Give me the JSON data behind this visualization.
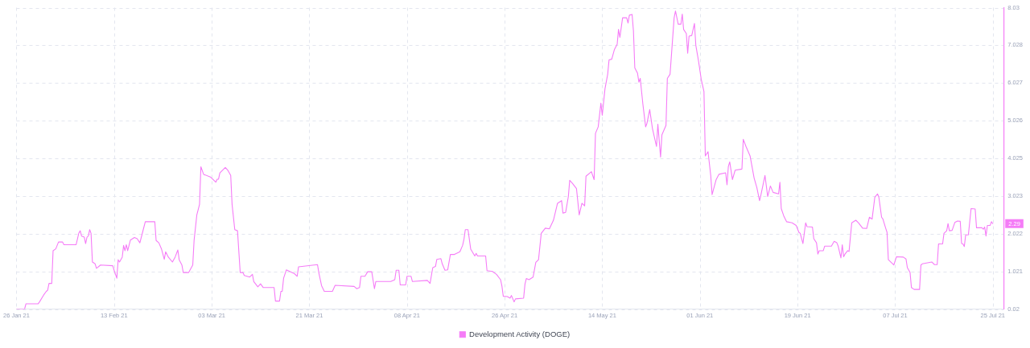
{
  "chart_data": {
    "type": "line",
    "x": [
      "2021-01-26T00:00",
      "2021-01-27T12:00",
      "2021-01-27T18:00",
      "2021-01-30T00:00",
      "2021-01-30T06:00",
      "2021-01-31T00:00",
      "2021-01-31T12:00",
      "2021-01-31T18:00",
      "2021-02-01T00:00",
      "2021-02-01T12:00",
      "2021-02-01T18:00",
      "2021-02-02T06:00",
      "2021-02-02T18:00",
      "2021-02-03T12:00",
      "2021-02-03T18:00",
      "2021-02-06T00:00",
      "2021-02-06T12:00",
      "2021-02-06T18:00",
      "2021-02-07T00:00",
      "2021-02-07T12:00",
      "2021-02-07T18:00",
      "2021-02-08T00:00",
      "2021-02-08T06:00",
      "2021-02-08T12:00",
      "2021-02-08T18:00",
      "2021-02-09T00:00",
      "2021-02-09T12:00",
      "2021-02-09T18:00",
      "2021-02-10T12:00",
      "2021-02-12T18:00",
      "2021-02-13T00:00",
      "2021-02-13T12:00",
      "2021-02-13T18:00",
      "2021-02-14T00:00",
      "2021-02-14T12:00",
      "2021-02-14T18:00",
      "2021-02-15T00:00",
      "2021-02-15T06:00",
      "2021-02-15T12:00",
      "2021-02-16T00:00",
      "2021-02-16T18:00",
      "2021-02-17T06:00",
      "2021-02-17T18:00",
      "2021-02-18T06:00",
      "2021-02-18T18:00",
      "2021-02-20T12:00",
      "2021-02-20T18:00",
      "2021-02-21T06:00",
      "2021-02-21T18:00",
      "2021-02-22T06:00",
      "2021-02-22T12:00",
      "2021-02-23T00:00",
      "2021-02-23T18:00",
      "2021-02-24T06:00",
      "2021-02-24T18:00",
      "2021-02-25T00:00",
      "2021-02-25T12:00",
      "2021-02-25T18:00",
      "2021-02-26T18:00",
      "2021-02-27T12:00",
      "2021-02-27T18:00",
      "2021-02-28T06:00",
      "2021-02-28T18:00",
      "2021-03-01T00:00",
      "2021-03-01T12:00",
      "2021-03-02T18:00",
      "2021-03-03T18:00",
      "2021-03-04T00:00",
      "2021-03-04T06:00",
      "2021-03-04T12:00",
      "2021-03-05T12:00",
      "2021-03-06T00:00",
      "2021-03-06T12:00",
      "2021-03-06T18:00",
      "2021-03-07T06:00",
      "2021-03-07T18:00",
      "2021-03-08T06:00",
      "2021-03-08T18:00",
      "2021-03-09T00:00",
      "2021-03-10T00:00",
      "2021-03-10T12:00",
      "2021-03-10T18:00",
      "2021-03-11T12:00",
      "2021-03-12T00:00",
      "2021-03-12T12:00",
      "2021-03-14T12:00",
      "2021-03-14T18:00",
      "2021-03-15T12:00",
      "2021-03-15T18:00",
      "2021-03-16T00:00",
      "2021-03-16T06:00",
      "2021-03-16T18:00",
      "2021-03-18T06:00",
      "2021-03-18T18:00",
      "2021-03-19T00:00",
      "2021-03-22T12:00",
      "2021-03-22T18:00",
      "2021-03-23T06:00",
      "2021-03-23T18:00",
      "2021-03-25T06:00",
      "2021-03-25T18:00",
      "2021-03-29T06:00",
      "2021-03-29T18:00",
      "2021-03-30T06:00",
      "2021-03-30T12:00",
      "2021-03-31T06:00",
      "2021-03-31T18:00",
      "2021-04-01T12:00",
      "2021-04-02T00:00",
      "2021-04-02T06:00",
      "2021-04-05T00:00",
      "2021-04-05T18:00",
      "2021-04-06T00:00",
      "2021-04-06T12:00",
      "2021-04-06T18:00",
      "2021-04-07T18:00",
      "2021-04-08T00:00",
      "2021-04-08T18:00",
      "2021-04-09T00:00",
      "2021-04-11T18:00",
      "2021-04-12T06:00",
      "2021-04-12T18:00",
      "2021-04-13T06:00",
      "2021-04-13T12:00",
      "2021-04-14T06:00",
      "2021-04-14T12:00",
      "2021-04-15T00:00",
      "2021-04-15T12:00",
      "2021-04-16T00:00",
      "2021-04-16T18:00",
      "2021-04-17T18:00",
      "2021-04-18T06:00",
      "2021-04-18T12:00",
      "2021-04-18T18:00",
      "2021-04-19T06:00",
      "2021-04-19T18:00",
      "2021-04-20T12:00",
      "2021-04-20T18:00",
      "2021-04-21T00:00",
      "2021-04-22T12:00",
      "2021-04-22T18:00",
      "2021-04-23T18:00",
      "2021-04-24T12:00",
      "2021-04-25T06:00",
      "2021-04-25T12:00",
      "2021-04-25T18:00",
      "2021-04-26T12:00",
      "2021-04-27T00:00",
      "2021-04-27T06:00",
      "2021-04-27T18:00",
      "2021-04-28T00:00",
      "2021-04-29T12:00",
      "2021-04-29T18:00",
      "2021-04-30T00:00",
      "2021-04-30T12:00",
      "2021-05-01T06:00",
      "2021-05-01T18:00",
      "2021-05-02T06:00",
      "2021-05-02T18:00",
      "2021-05-03T12:00",
      "2021-05-04T06:00",
      "2021-05-05T00:00",
      "2021-05-05T18:00",
      "2021-05-06T12:00",
      "2021-05-06T18:00",
      "2021-05-07T06:00",
      "2021-05-07T18:00",
      "2021-05-08T00:00",
      "2021-05-08T12:00",
      "2021-05-09T06:00",
      "2021-05-09T18:00",
      "2021-05-10T06:00",
      "2021-05-10T18:00",
      "2021-05-11T00:00",
      "2021-05-12T00:00",
      "2021-05-12T12:00",
      "2021-05-12T18:00",
      "2021-05-13T06:00",
      "2021-05-13T18:00",
      "2021-05-14T00:00",
      "2021-05-14T12:00",
      "2021-05-15T00:00",
      "2021-05-15T06:00",
      "2021-05-15T18:00",
      "2021-05-16T06:00",
      "2021-05-16T18:00",
      "2021-05-17T00:00",
      "2021-05-17T06:00",
      "2021-05-17T18:00",
      "2021-05-18T12:00",
      "2021-05-18T18:00",
      "2021-05-19T00:00",
      "2021-05-19T12:00",
      "2021-05-19T18:00",
      "2021-05-20T00:00",
      "2021-05-20T12:00",
      "2021-05-20T18:00",
      "2021-05-21T00:00",
      "2021-05-21T12:00",
      "2021-05-22T00:00",
      "2021-05-22T06:00",
      "2021-05-22T18:00",
      "2021-05-23T06:00",
      "2021-05-24T00:00",
      "2021-05-24T06:00",
      "2021-05-24T18:00",
      "2021-05-25T00:00",
      "2021-05-25T18:00",
      "2021-05-26T00:00",
      "2021-05-26T12:00",
      "2021-05-27T06:00",
      "2021-05-27T12:00",
      "2021-05-28T00:00",
      "2021-05-28T12:00",
      "2021-05-28T18:00",
      "2021-05-29T00:00",
      "2021-05-29T12:00",
      "2021-05-29T18:00",
      "2021-05-30T00:00",
      "2021-05-30T12:00",
      "2021-05-31T00:00",
      "2021-05-31T06:00",
      "2021-05-31T18:00",
      "2021-06-01T06:00",
      "2021-06-01T18:00",
      "2021-06-02T00:00",
      "2021-06-02T12:00",
      "2021-06-03T00:00",
      "2021-06-03T06:00",
      "2021-06-04T00:00",
      "2021-06-04T12:00",
      "2021-06-05T18:00",
      "2021-06-06T00:00",
      "2021-06-06T06:00",
      "2021-06-06T12:00",
      "2021-06-07T00:00",
      "2021-06-07T12:00",
      "2021-06-08T18:00",
      "2021-06-09T00:00",
      "2021-06-09T12:00",
      "2021-06-10T06:00",
      "2021-06-11T00:00",
      "2021-06-11T12:00",
      "2021-06-12T00:00",
      "2021-06-12T06:00",
      "2021-06-13T00:00",
      "2021-06-13T12:00",
      "2021-06-14T00:00",
      "2021-06-14T12:00",
      "2021-06-15T12:00",
      "2021-06-15T18:00",
      "2021-06-16T00:00",
      "2021-06-16T12:00",
      "2021-06-17T00:00",
      "2021-06-18T00:00",
      "2021-06-18T18:00",
      "2021-06-19T06:00",
      "2021-06-19T12:00",
      "2021-06-20T00:00",
      "2021-06-20T12:00",
      "2021-06-20T18:00",
      "2021-06-21T18:00",
      "2021-06-22T00:00",
      "2021-06-22T12:00",
      "2021-06-22T18:00",
      "2021-06-23T00:00",
      "2021-06-23T18:00",
      "2021-06-24T00:00",
      "2021-06-25T06:00",
      "2021-06-25T18:00",
      "2021-06-26T06:00",
      "2021-06-26T12:00",
      "2021-06-27T00:00",
      "2021-06-27T06:00",
      "2021-06-27T12:00",
      "2021-06-27T18:00",
      "2021-06-28T06:00",
      "2021-06-28T12:00",
      "2021-06-29T00:00",
      "2021-06-29T18:00",
      "2021-06-30T06:00",
      "2021-07-01T00:00",
      "2021-07-01T18:00",
      "2021-07-02T06:00",
      "2021-07-02T18:00",
      "2021-07-03T06:00",
      "2021-07-03T18:00",
      "2021-07-04T00:00",
      "2021-07-04T12:00",
      "2021-07-04T18:00",
      "2021-07-05T06:00",
      "2021-07-05T12:00",
      "2021-07-05T18:00",
      "2021-07-06T06:00",
      "2021-07-06T18:00",
      "2021-07-07T06:00",
      "2021-07-08T12:00",
      "2021-07-09T00:00",
      "2021-07-09T06:00",
      "2021-07-09T18:00",
      "2021-07-10T00:00",
      "2021-07-10T12:00",
      "2021-07-11T12:00",
      "2021-07-11T18:00",
      "2021-07-12T00:00",
      "2021-07-13T18:00",
      "2021-07-14T06:00",
      "2021-07-14T18:00",
      "2021-07-15T00:00",
      "2021-07-15T18:00",
      "2021-07-16T00:00",
      "2021-07-16T12:00",
      "2021-07-16T18:00",
      "2021-07-17T00:00",
      "2021-07-17T12:00",
      "2021-07-18T00:00",
      "2021-07-18T12:00",
      "2021-07-19T00:00",
      "2021-07-19T06:00",
      "2021-07-19T12:00",
      "2021-07-19T18:00",
      "2021-07-20T00:00",
      "2021-07-20T12:00",
      "2021-07-21T00:00",
      "2021-07-21T18:00",
      "2021-07-22T00:00",
      "2021-07-23T00:00",
      "2021-07-23T06:00",
      "2021-07-23T12:00",
      "2021-07-23T18:00",
      "2021-07-24T00:00",
      "2021-07-24T12:00",
      "2021-07-24T18:00",
      "2021-07-25T00:00"
    ],
    "series": [
      {
        "name": "Development Activity (DOGE)",
        "color": "#f57cf7",
        "values": [
          0.02,
          0.02,
          0.16,
          0.16,
          0.21,
          0.39,
          0.49,
          0.52,
          0.7,
          0.7,
          1.57,
          1.62,
          1.8,
          1.8,
          1.73,
          1.73,
          2.04,
          2.1,
          1.96,
          1.93,
          1.76,
          1.93,
          1.96,
          2.13,
          2.03,
          1.27,
          1.22,
          1.1,
          1.19,
          1.17,
          1.05,
          0.84,
          1.33,
          1.27,
          1.4,
          1.71,
          1.57,
          1.73,
          1.57,
          1.85,
          1.92,
          1.89,
          1.78,
          2.06,
          2.34,
          2.34,
          1.84,
          1.78,
          1.61,
          1.34,
          1.54,
          1.4,
          1.27,
          1.4,
          1.59,
          1.33,
          1.19,
          0.99,
          0.99,
          1.19,
          1.85,
          2.52,
          2.8,
          3.8,
          3.6,
          3.53,
          3.39,
          3.47,
          3.47,
          3.64,
          3.78,
          3.7,
          3.57,
          2.8,
          2.13,
          2.1,
          0.99,
          0.99,
          0.91,
          0.87,
          0.94,
          0.75,
          0.61,
          0.69,
          0.59,
          0.59,
          0.23,
          0.23,
          0.49,
          0.49,
          0.84,
          1.06,
          0.96,
          0.89,
          1.14,
          1.2,
          0.98,
          0.64,
          0.49,
          0.49,
          0.65,
          0.62,
          0.56,
          0.59,
          0.89,
          0.89,
          1.01,
          1.01,
          0.56,
          0.75,
          0.75,
          0.8,
          1.05,
          1.05,
          0.66,
          0.66,
          0.89,
          0.89,
          0.75,
          0.78,
          0.7,
          1.12,
          1.15,
          1.34,
          1.36,
          1.22,
          1.05,
          1.06,
          1.47,
          1.47,
          1.54,
          1.71,
          1.87,
          2.13,
          2.13,
          1.61,
          1.43,
          1.5,
          1.43,
          1.43,
          1.04,
          1.02,
          0.94,
          0.8,
          0.63,
          0.36,
          0.35,
          0.31,
          0.38,
          0.21,
          0.29,
          0.31,
          0.68,
          0.83,
          0.8,
          0.87,
          1.26,
          1.33,
          2.03,
          2.17,
          2.15,
          2.38,
          2.83,
          2.9,
          2.57,
          2.59,
          3.01,
          3.44,
          3.36,
          3.22,
          2.52,
          2.83,
          2.76,
          3.55,
          3.67,
          3.46,
          4.69,
          4.86,
          5.49,
          5.17,
          5.87,
          6.26,
          6.64,
          6.66,
          6.92,
          7.06,
          7.45,
          7.24,
          7.76,
          7.76,
          7.62,
          7.83,
          7.85,
          7.41,
          6.43,
          6.29,
          6.05,
          6.15,
          5.45,
          4.86,
          4.96,
          5.32,
          4.82,
          4.34,
          4.93,
          4.06,
          4.65,
          4.9,
          6.15,
          6.26,
          7.76,
          7.94,
          7.59,
          7.59,
          7.86,
          7.45,
          7.34,
          6.82,
          7.27,
          7.29,
          7.61,
          7.03,
          6.61,
          6.12,
          5.8,
          4.09,
          4.2,
          3.57,
          3.06,
          3.46,
          3.6,
          3.64,
          3.32,
          3.81,
          3.93,
          3.46,
          3.71,
          3.74,
          4.53,
          4.34,
          4.09,
          3.5,
          3.25,
          2.9,
          3.05,
          3.57,
          3.01,
          3.29,
          3.12,
          3.08,
          3.39,
          2.69,
          2.48,
          2.34,
          2.31,
          2.24,
          2.06,
          2.03,
          1.76,
          2.31,
          2.21,
          2.2,
          1.89,
          1.78,
          1.48,
          1.57,
          1.57,
          1.69,
          1.69,
          1.82,
          1.78,
          1.69,
          1.38,
          1.73,
          1.41,
          1.48,
          1.57,
          1.55,
          2.31,
          2.38,
          2.31,
          2.17,
          2.16,
          2.46,
          2.41,
          2.99,
          3.08,
          2.99,
          2.46,
          2.41,
          2.17,
          2.06,
          1.33,
          1.26,
          1.19,
          1.41,
          1.4,
          1.35,
          1.12,
          0.99,
          0.59,
          0.54,
          0.54,
          1.19,
          1.22,
          1.27,
          1.2,
          1.2,
          1.75,
          1.75,
          2.03,
          2.1,
          2.29,
          2.1,
          2.11,
          2.32,
          2.36,
          2.35,
          1.76,
          1.75,
          1.68,
          1.99,
          1.99,
          2.69,
          2.68,
          2.18,
          2.18,
          2.14,
          2.2,
          1.96,
          2.24,
          2.24,
          2.34,
          2.29
        ]
      }
    ],
    "xlim": [
      "2021-01-26",
      "2021-07-27"
    ],
    "xticks": [
      {
        "value": "2021-01-26",
        "label": "26 Jan 21"
      },
      {
        "value": "2021-02-13",
        "label": "13 Feb 21"
      },
      {
        "value": "2021-03-03",
        "label": "03 Mar 21"
      },
      {
        "value": "2021-03-21",
        "label": "21 Mar 21"
      },
      {
        "value": "2021-04-08",
        "label": "08 Apr 21"
      },
      {
        "value": "2021-04-26",
        "label": "26 Apr 21"
      },
      {
        "value": "2021-05-14",
        "label": "14 May 21"
      },
      {
        "value": "2021-06-01",
        "label": "01 Jun 21"
      },
      {
        "value": "2021-06-19",
        "label": "19 Jun 21"
      },
      {
        "value": "2021-07-07",
        "label": "07 Jul 21"
      },
      {
        "value": "2021-07-25",
        "label": "25 Jul 21"
      }
    ],
    "ylim": [
      0.02,
      8.03
    ],
    "yticks": [
      0.02,
      1.021,
      2.022,
      3.023,
      4.025,
      5.026,
      6.027,
      7.028,
      8.03
    ],
    "grid": true,
    "legend": "bottom",
    "marker": "none",
    "annotations": [
      {
        "text": "2.29",
        "x": "2021-07-25T00:00",
        "y": 2.29
      }
    ]
  }
}
